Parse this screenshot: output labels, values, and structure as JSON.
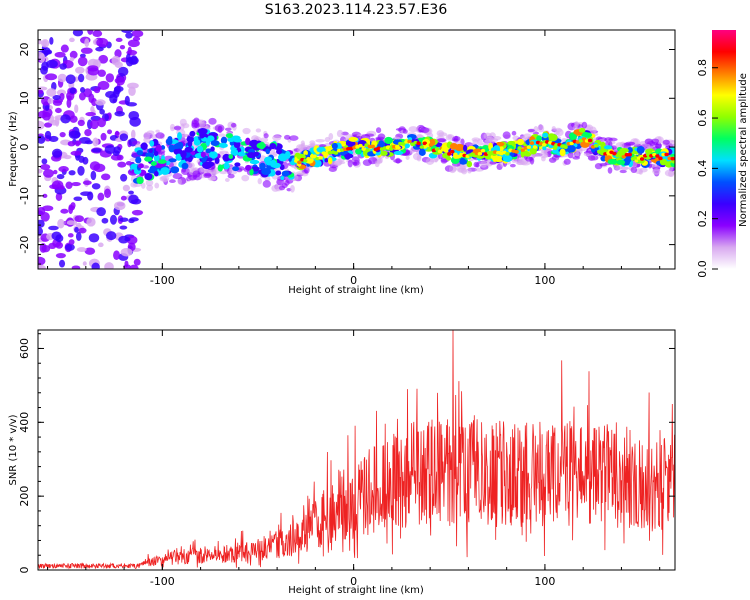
{
  "chart_data": [
    {
      "type": "heatmap",
      "title": "S163.2023.114.23.57.E36",
      "xlabel": "Height of straight line (km)",
      "ylabel": "Frequency (Hz)",
      "xlim": [
        -165,
        168
      ],
      "ylim": [
        -25,
        24
      ],
      "x_ticks": [
        -100,
        0,
        100
      ],
      "y_ticks": [
        -20,
        -10,
        0,
        10,
        20
      ],
      "colorbar": {
        "label": "Normalized spectral amplitude",
        "range": [
          0,
          0.95
        ],
        "ticks": [
          0.0,
          0.2,
          0.4,
          0.6,
          0.8
        ],
        "colormap": [
          "#ffffff",
          "#d8a8f0",
          "#8a00ff",
          "#3a00ff",
          "#0050ff",
          "#00e0ff",
          "#00ff60",
          "#90ff00",
          "#ffff00",
          "#ff8000",
          "#ff0000",
          "#ff0080"
        ]
      },
      "ridge": {
        "x": [
          -115,
          -100,
          -90,
          -80,
          -70,
          -60,
          -50,
          -40,
          -30,
          -20,
          -10,
          0,
          10,
          20,
          30,
          40,
          50,
          60,
          70,
          80,
          90,
          100,
          110,
          120,
          130,
          140,
          150,
          160,
          168
        ],
        "y": [
          -4,
          -2,
          -1,
          0,
          -1,
          -1,
          -2,
          -3,
          -3,
          -2,
          -1,
          0,
          0,
          0,
          1,
          0,
          -1,
          -2,
          -1,
          -1,
          0,
          1,
          0,
          2,
          -1,
          -2,
          -2,
          -2,
          -2
        ]
      }
    },
    {
      "type": "line",
      "xlabel": "Height of straight line (km)",
      "ylabel": "SNR (10 * v/v)",
      "xlim": [
        -165,
        168
      ],
      "ylim": [
        0,
        650
      ],
      "x_ticks": [
        -100,
        0,
        100
      ],
      "y_ticks": [
        0,
        200,
        400,
        600
      ],
      "color": "#ee2222",
      "envelope": {
        "x": [
          -165,
          -115,
          -105,
          -90,
          -75,
          -60,
          -45,
          -35,
          -20,
          -10,
          0,
          10,
          20,
          30,
          45,
          60,
          80,
          100,
          120,
          140,
          155,
          168
        ],
        "y": [
          8,
          8,
          30,
          45,
          50,
          60,
          75,
          95,
          150,
          210,
          240,
          270,
          300,
          320,
          330,
          330,
          330,
          330,
          330,
          320,
          280,
          300
        ]
      }
    }
  ]
}
